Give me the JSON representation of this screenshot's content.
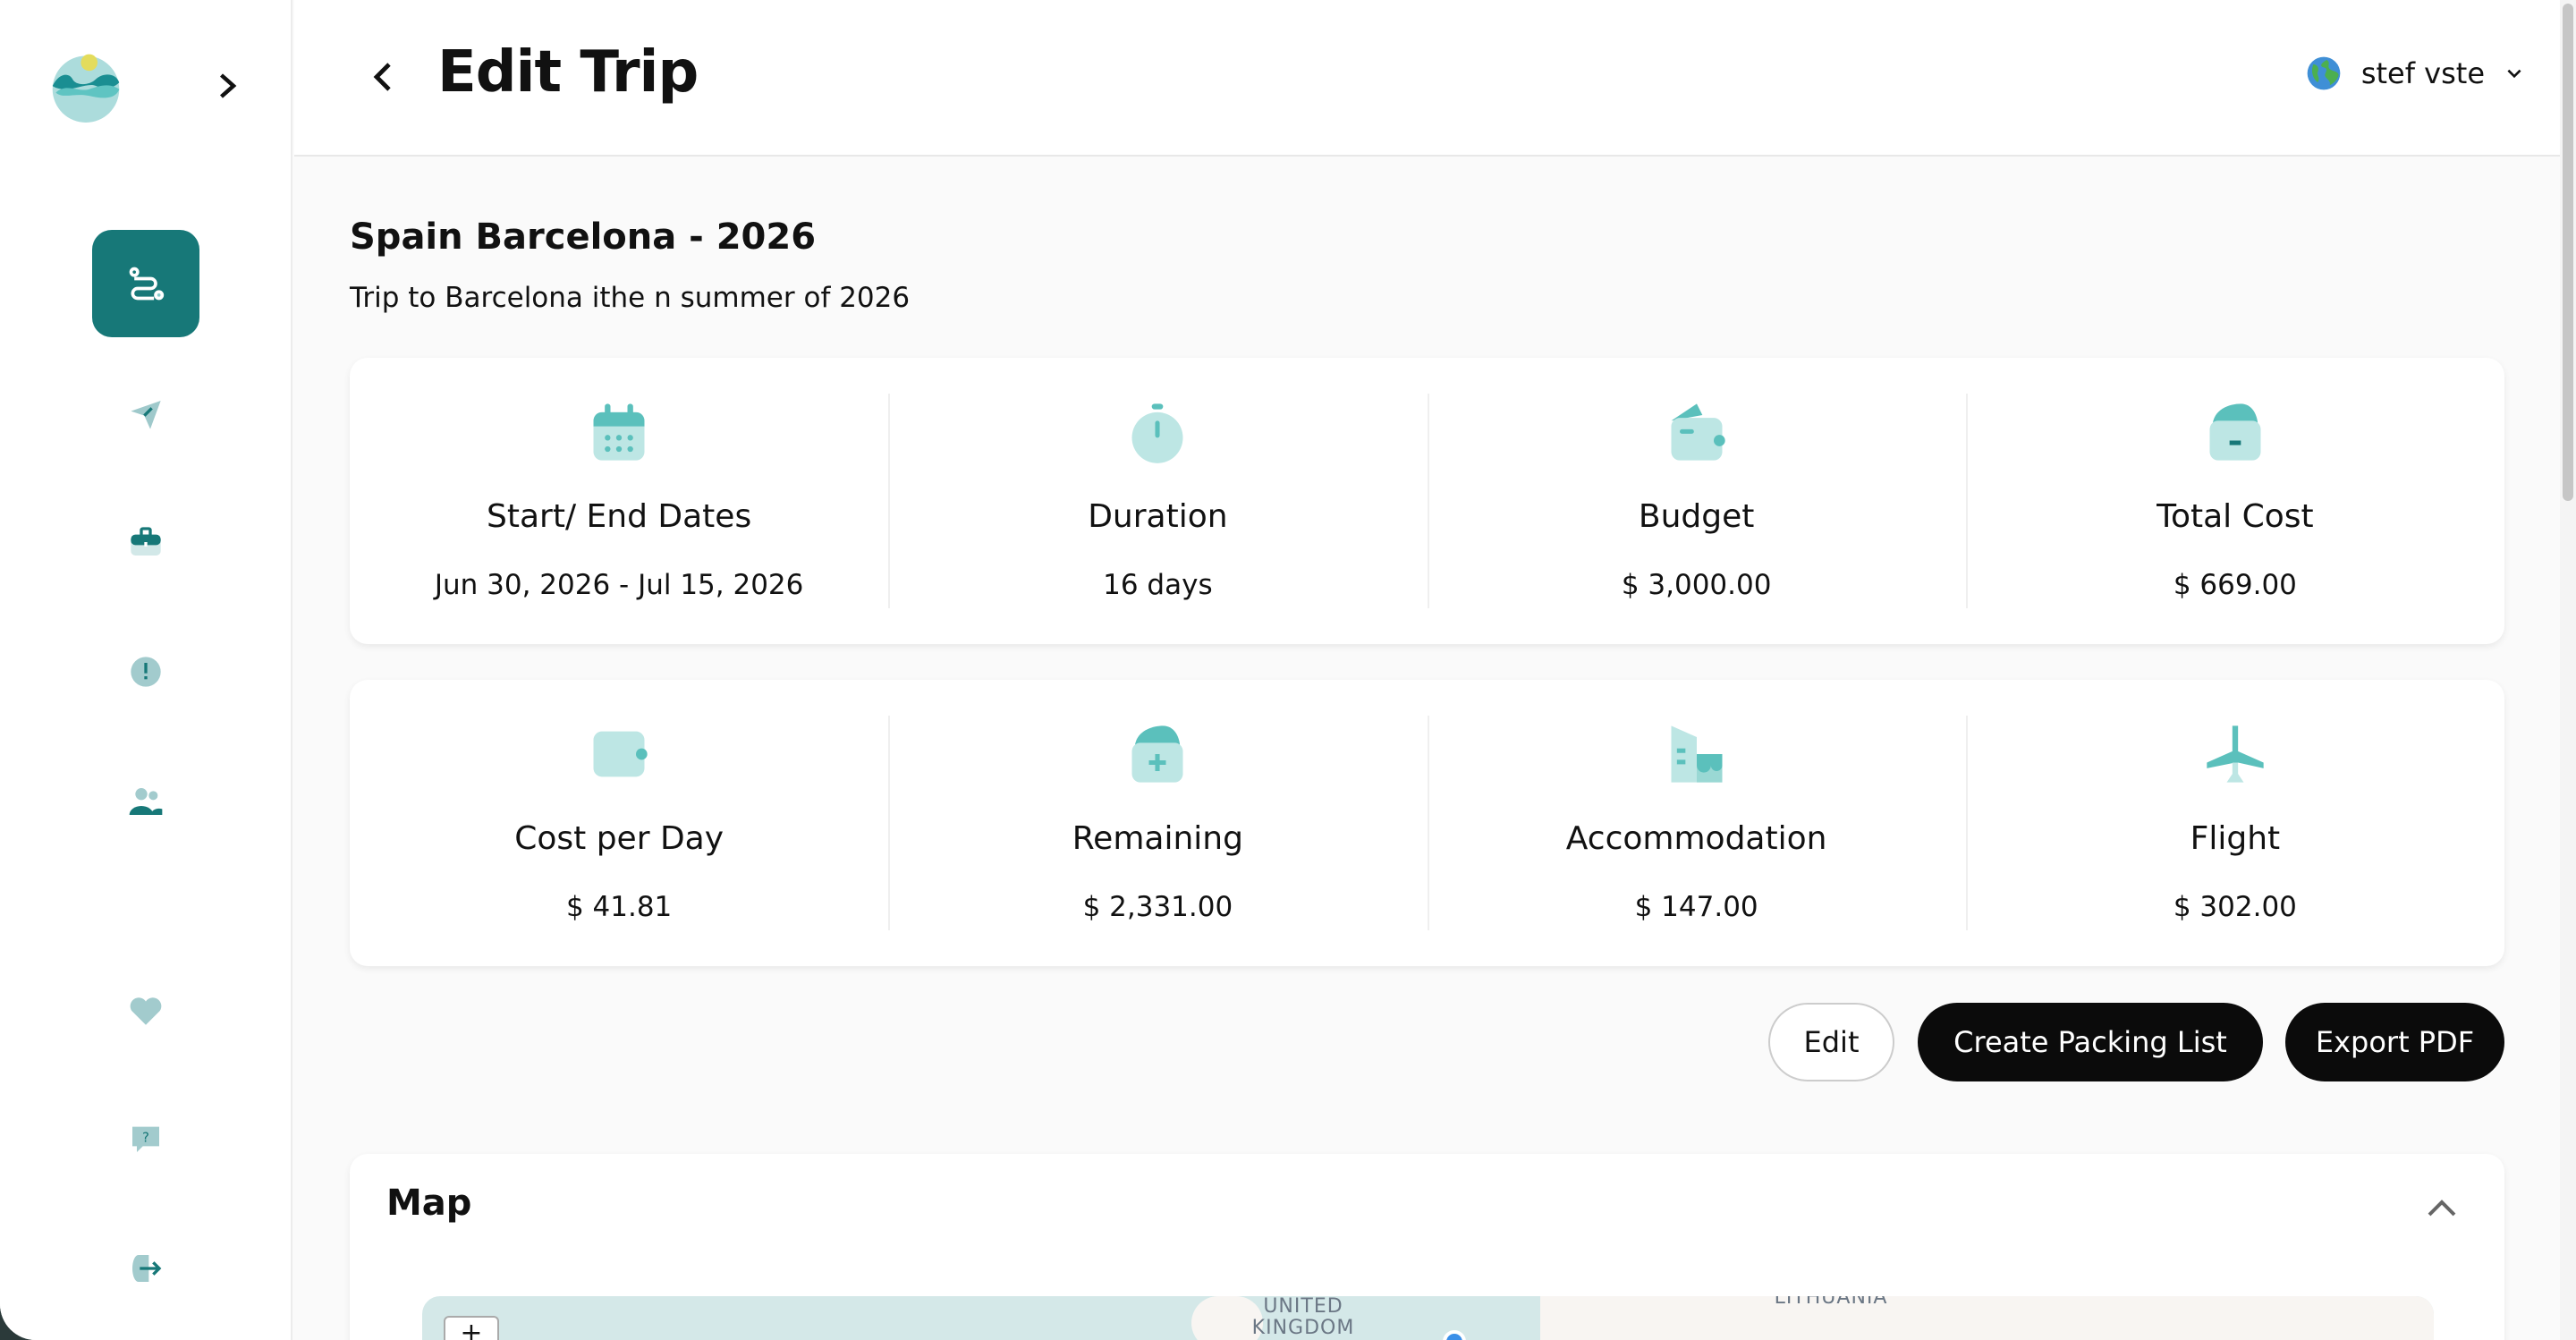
{
  "header": {
    "title": "Edit Trip",
    "user_name": "stef vste"
  },
  "sidebar": {
    "items": [
      {
        "icon": "route-icon",
        "active": true
      },
      {
        "icon": "paper-plane-icon"
      },
      {
        "icon": "briefcase-icon"
      },
      {
        "icon": "alert-icon"
      },
      {
        "icon": "users-icon"
      },
      {
        "icon": "heart-icon"
      },
      {
        "icon": "help-chat-icon"
      },
      {
        "icon": "logout-icon"
      }
    ]
  },
  "trip": {
    "title": "Spain Barcelona - 2026",
    "description": "Trip to Barcelona ithe n summer of 2026"
  },
  "stats_row1": [
    {
      "label": "Start/ End Dates",
      "value": "Jun 30, 2026 - Jul 15, 2026",
      "icon": "calendar-icon"
    },
    {
      "label": "Duration",
      "value": "16 days",
      "icon": "stopwatch-icon"
    },
    {
      "label": "Budget",
      "value": "$ 3,000.00",
      "icon": "wallet-icon"
    },
    {
      "label": "Total Cost",
      "value": "$ 669.00",
      "icon": "wallet-minus-icon"
    }
  ],
  "stats_row2": [
    {
      "label": "Cost per Day",
      "value": "$ 41.81",
      "icon": "wallet-icon"
    },
    {
      "label": "Remaining",
      "value": "$ 2,331.00",
      "icon": "wallet-plus-icon"
    },
    {
      "label": "Accommodation",
      "value": "$ 147.00",
      "icon": "hotel-icon"
    },
    {
      "label": "Flight",
      "value": "$ 302.00",
      "icon": "airplane-icon"
    }
  ],
  "actions": {
    "edit": "Edit",
    "packing": "Create Packing List",
    "export": "Export PDF"
  },
  "map": {
    "title": "Map",
    "zoom_in": "+",
    "labels": {
      "uk": "UNITED KINGDOM",
      "lithuania": "LITHUANIA"
    }
  },
  "colors": {
    "accent": "#177878",
    "icon_light": "#bde6e4",
    "icon_mid": "#5bc0bc"
  }
}
